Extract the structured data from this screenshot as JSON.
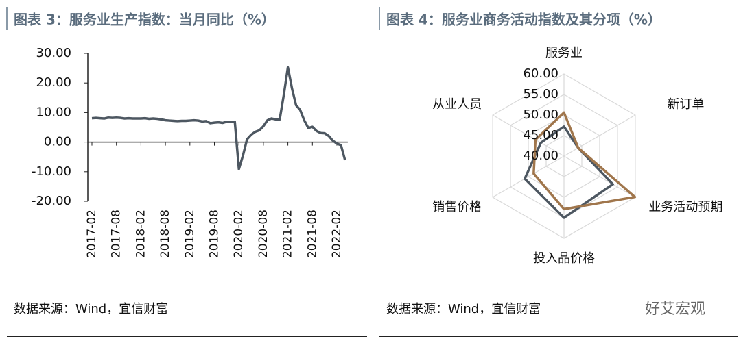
{
  "chart_data": [
    {
      "type": "line",
      "title": "图表 3：服务业生产指数：当月同比（%）",
      "source": "数据来源：Wind，宜信财富",
      "categories": [
        "2017-02",
        null,
        null,
        null,
        null,
        null,
        "2017-08",
        null,
        null,
        null,
        null,
        null,
        "2018-02",
        null,
        null,
        null,
        null,
        null,
        "2018-08",
        null,
        null,
        null,
        null,
        null,
        "2019-02",
        null,
        null,
        null,
        null,
        null,
        "2019-08",
        null,
        null,
        null,
        null,
        null,
        "2020-02",
        null,
        null,
        null,
        null,
        null,
        "2020-08",
        null,
        null,
        null,
        null,
        null,
        "2021-02",
        null,
        null,
        null,
        null,
        null,
        "2021-08",
        null,
        null,
        null,
        null,
        null,
        "2022-02",
        null,
        null
      ],
      "series": [
        {
          "color": "#4d5761",
          "values": [
            8.1,
            8.2,
            8.1,
            8.0,
            8.3,
            8.2,
            8.3,
            8.2,
            8.0,
            8.1,
            8.0,
            8.0,
            8.0,
            8.1,
            7.9,
            8.0,
            7.9,
            7.7,
            7.4,
            7.3,
            7.2,
            7.1,
            7.2,
            7.2,
            7.3,
            7.4,
            7.3,
            7.0,
            7.1,
            6.4,
            6.6,
            6.7,
            6.5,
            6.9,
            6.9,
            6.9,
            -9.1,
            -4.5,
            1.0,
            2.5,
            3.5,
            4.0,
            5.4,
            7.4,
            8.0,
            7.7,
            7.7,
            16.0,
            25.3,
            18.2,
            12.5,
            10.9,
            7.4,
            4.8,
            5.2,
            3.8,
            3.1,
            3.0,
            2.1,
            0.5,
            -0.5,
            -1.0,
            -6.1
          ]
        }
      ],
      "ylim": [
        -20,
        30
      ],
      "yticks": [
        {
          "value": -20,
          "label": "-20.00"
        },
        {
          "value": -10,
          "label": "-10.00"
        },
        {
          "value": 0,
          "label": "0.00"
        },
        {
          "value": 10,
          "label": "10.00"
        },
        {
          "value": 20,
          "label": "20.00"
        },
        {
          "value": 30,
          "label": "30.00"
        }
      ]
    },
    {
      "type": "radar",
      "title": "图表 4：服务业商务活动指数及其分项（%）",
      "source": "数据来源：Wind，宜信财富",
      "categories": [
        "服务业",
        "新订单",
        "业务活动预期",
        "投入品价格",
        "销售价格",
        "从业人员"
      ],
      "series": [
        {
          "color": "#4d5761",
          "values": [
            47.2,
            44.0,
            53.7,
            55.0,
            51.0,
            46.5
          ]
        },
        {
          "color": "#a0764c",
          "values": [
            50.6,
            44.0,
            59.9,
            52.9,
            48.5,
            48.0
          ]
        }
      ],
      "rlim": [
        40,
        60
      ],
      "rticks": [
        {
          "value": 40,
          "label": "40.00"
        },
        {
          "value": 45,
          "label": "45.00"
        },
        {
          "value": 50,
          "label": "50.00"
        },
        {
          "value": 55,
          "label": "55.00"
        },
        {
          "value": 60,
          "label": "60.00"
        }
      ]
    }
  ],
  "watermark": "好艾宏观"
}
